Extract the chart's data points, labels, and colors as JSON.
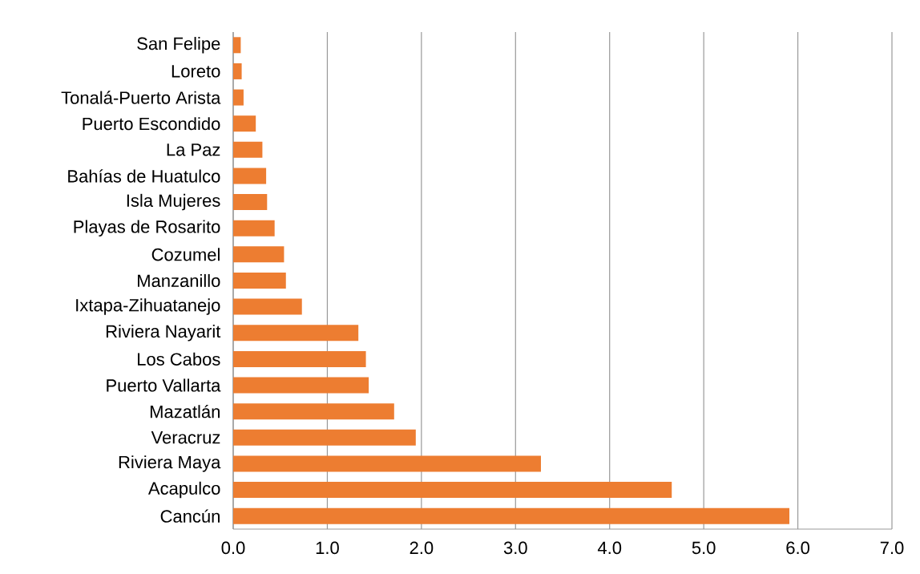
{
  "chart_data": {
    "type": "bar",
    "orientation": "horizontal",
    "categories": [
      "San Felipe",
      "Loreto",
      "Tonalá-Puerto Arista",
      "Puerto Escondido",
      "La Paz",
      "Bahías de Huatulco",
      "Isla Mujeres",
      "Playas de Rosarito",
      "Cozumel",
      "Manzanillo",
      "Ixtapa-Zihuatanejo",
      "Riviera Nayarit",
      "Los Cabos",
      "Puerto Vallarta",
      "Mazatlán",
      "Veracruz",
      "Riviera Maya",
      "Acapulco",
      "Cancún"
    ],
    "values": [
      0.08,
      0.09,
      0.11,
      0.24,
      0.31,
      0.35,
      0.36,
      0.44,
      0.54,
      0.56,
      0.73,
      1.33,
      1.41,
      1.44,
      1.71,
      1.94,
      3.27,
      4.66,
      5.91
    ],
    "color": "#ed7d31",
    "xlim": [
      0,
      7
    ],
    "xticks": [
      {
        "value": 0,
        "label": "0.0"
      },
      {
        "value": 1,
        "label": "1.0"
      },
      {
        "value": 2,
        "label": "2.0"
      },
      {
        "value": 3,
        "label": "3.0"
      },
      {
        "value": 4,
        "label": "4.0"
      },
      {
        "value": 5,
        "label": "5.0"
      },
      {
        "value": 6,
        "label": "6.0"
      },
      {
        "value": 7,
        "label": "7.0"
      }
    ],
    "grid": "x"
  }
}
